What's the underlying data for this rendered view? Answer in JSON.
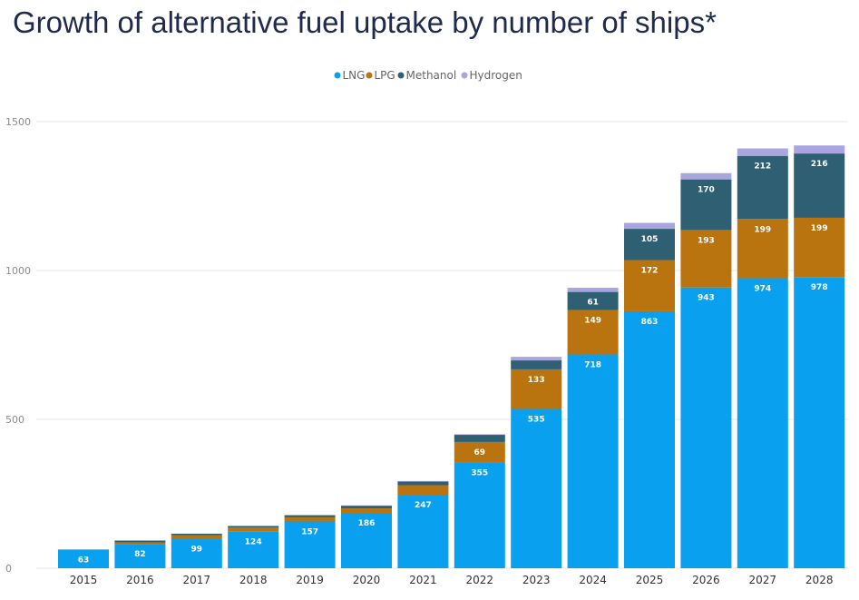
{
  "chart_data": {
    "type": "bar",
    "stacked": true,
    "title": "Growth of alternative fuel uptake by number of ships*",
    "xlabel": "",
    "ylabel": "",
    "ylim": [
      0,
      1500
    ],
    "yticks": [
      0,
      500,
      1000,
      1500
    ],
    "grid": true,
    "legend_position": "top-center",
    "categories": [
      "2015",
      "2016",
      "2017",
      "2018",
      "2019",
      "2020",
      "2021",
      "2022",
      "2023",
      "2024",
      "2025",
      "2026",
      "2027",
      "2028"
    ],
    "series": [
      {
        "name": "LNG",
        "color": "#0aa0f0",
        "values": [
          63,
          82,
          99,
          124,
          157,
          186,
          247,
          355,
          535,
          718,
          863,
          943,
          974,
          978
        ],
        "labeled": [
          true,
          true,
          true,
          true,
          true,
          true,
          true,
          true,
          true,
          true,
          true,
          true,
          true,
          true
        ]
      },
      {
        "name": "LPG",
        "color": "#b9730f",
        "values": [
          0,
          5,
          12,
          13,
          14,
          15,
          32,
          69,
          133,
          149,
          172,
          193,
          199,
          199
        ],
        "labeled": [
          false,
          false,
          false,
          false,
          false,
          false,
          false,
          true,
          true,
          true,
          true,
          true,
          true,
          true
        ]
      },
      {
        "name": "Methanol",
        "color": "#2e5f72",
        "values": [
          0,
          6,
          5,
          5,
          7,
          9,
          12,
          24,
          30,
          61,
          105,
          170,
          212,
          216
        ],
        "labeled": [
          false,
          false,
          false,
          false,
          false,
          false,
          false,
          false,
          false,
          true,
          true,
          true,
          true,
          true
        ]
      },
      {
        "name": "Hydrogen",
        "color": "#a9a6df",
        "values": [
          0,
          0,
          0,
          0,
          1,
          1,
          2,
          2,
          12,
          14,
          20,
          21,
          25,
          27
        ],
        "labeled": [
          false,
          false,
          false,
          false,
          false,
          false,
          false,
          false,
          false,
          false,
          false,
          false,
          false,
          false
        ]
      }
    ]
  }
}
